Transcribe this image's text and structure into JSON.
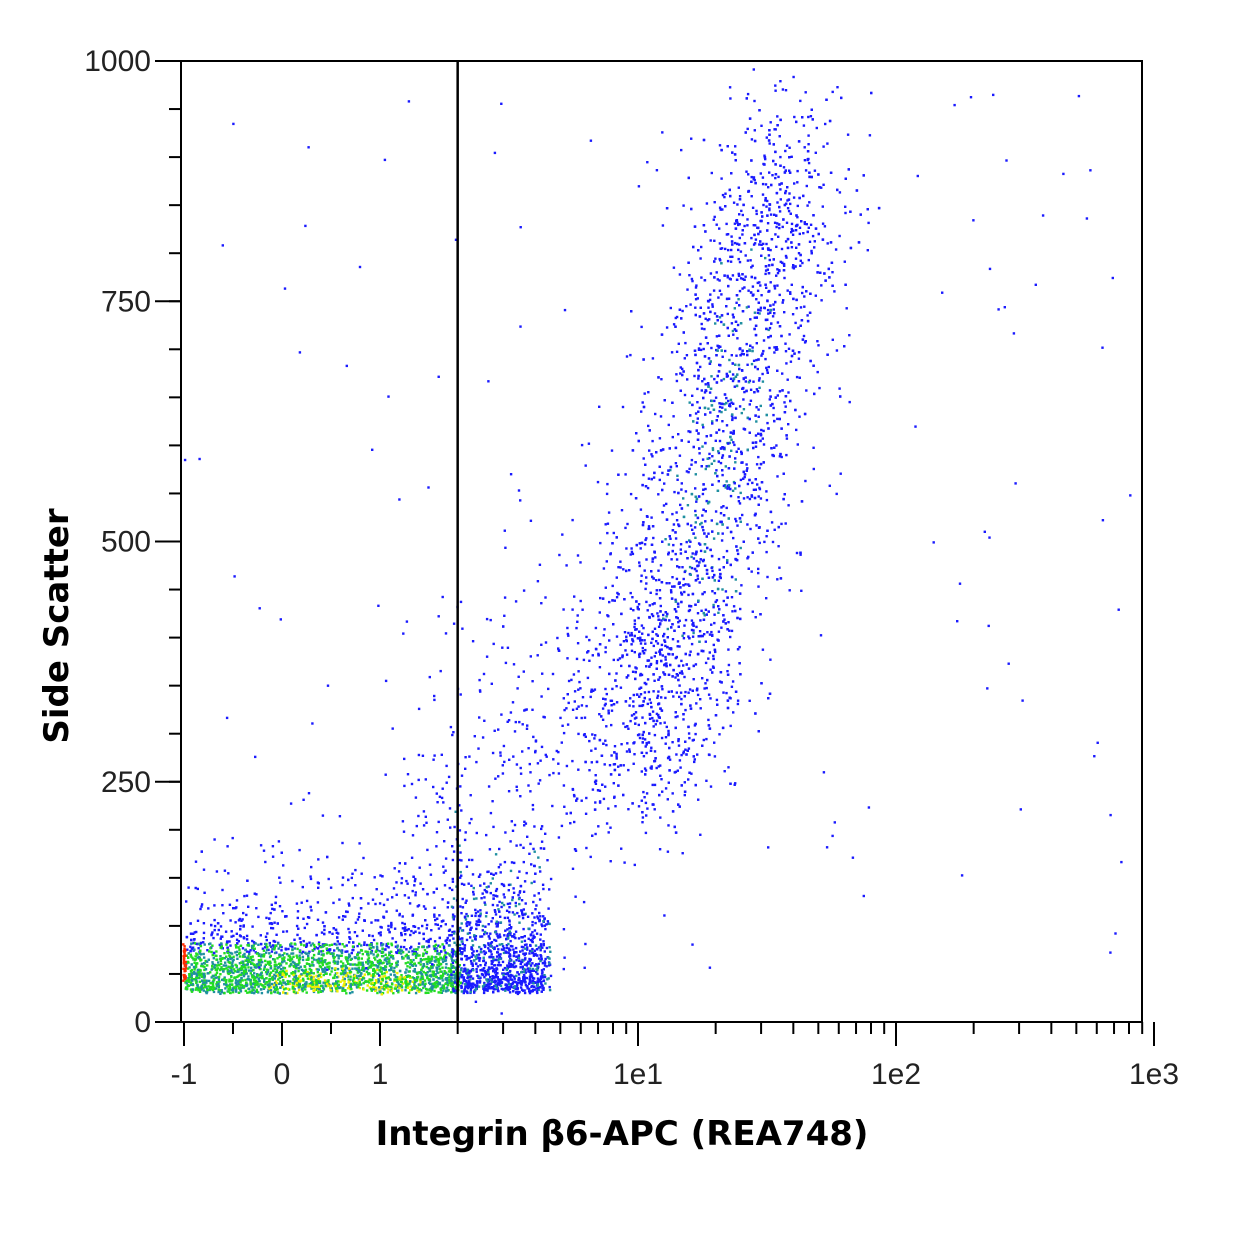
{
  "chart_data": {
    "type": "scatter",
    "title": "",
    "xlabel": "Integrin β6-APC (REA748)",
    "ylabel": "Side Scatter",
    "x_scale": "hyperlog (linear from -1 to 1, log from 1 to 1e3)",
    "xlim": [
      -1,
      1000
    ],
    "ylim": [
      0,
      1000
    ],
    "x_ticks": [
      {
        "value": -1,
        "label": "-1"
      },
      {
        "value": 0,
        "label": "0"
      },
      {
        "value": 1,
        "label": "1"
      },
      {
        "value": 10,
        "label": "1e1"
      },
      {
        "value": 100,
        "label": "1e2"
      },
      {
        "value": 1000,
        "label": "1e3"
      }
    ],
    "y_ticks": [
      {
        "value": 0,
        "label": "0"
      },
      {
        "value": 250,
        "label": "250"
      },
      {
        "value": 500,
        "label": "500"
      },
      {
        "value": 750,
        "label": "750"
      },
      {
        "value": 1000,
        "label": "1000"
      }
    ],
    "y_minor_step": 50,
    "gate_x": 2,
    "grid": false,
    "color_map": "density (blue → green → yellow → red)",
    "colors": {
      "low": "#1a1aff",
      "mid": "#1f8fa0",
      "high": "#22dd22",
      "higher": "#eeee00",
      "peak": "#ff2a00"
    },
    "populations": [
      {
        "name": "negative",
        "x_center": 0.6,
        "x_spread": 1.6,
        "y_center": 50,
        "y_spread": 40
      },
      {
        "name": "positive",
        "x_center": 25,
        "x_range": [
          10,
          80
        ],
        "y_center": 430,
        "y_range": [
          200,
          970
        ]
      }
    ]
  }
}
